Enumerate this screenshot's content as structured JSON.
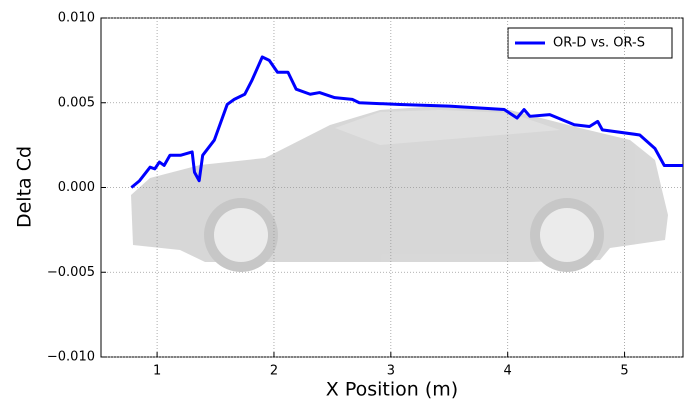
{
  "chart_data": {
    "type": "line",
    "xlabel": "X Position (m)",
    "ylabel": "Delta Cd",
    "xlim": [
      0.52,
      5.5
    ],
    "ylim": [
      -0.01,
      0.01
    ],
    "xticks": [
      1,
      2,
      3,
      4,
      5
    ],
    "yticks": [
      {
        "value": -0.01,
        "label": "−0.010"
      },
      {
        "value": -0.005,
        "label": "−0.005"
      },
      {
        "value": 0,
        "label": "0.000"
      },
      {
        "value": 0.005,
        "label": "0.005"
      },
      {
        "value": 0.01,
        "label": "0.010"
      }
    ],
    "grid": true,
    "legend": "upper right",
    "series": [
      {
        "name": "OR-D vs. OR-S",
        "color": "#0000ff",
        "x": [
          0.78,
          0.85,
          0.94,
          0.98,
          1.02,
          1.06,
          1.11,
          1.2,
          1.3,
          1.32,
          1.36,
          1.39,
          1.49,
          1.6,
          1.66,
          1.75,
          1.81,
          1.9,
          1.96,
          2.03,
          2.12,
          2.19,
          2.31,
          2.39,
          2.52,
          2.67,
          2.73,
          3.08,
          3.5,
          3.97,
          4.08,
          4.14,
          4.19,
          4.36,
          4.57,
          4.7,
          4.77,
          4.81,
          5.13,
          5.26,
          5.34,
          5.5
        ],
        "values": [
          0.0,
          0.0004,
          0.0012,
          0.0011,
          0.0015,
          0.0013,
          0.0019,
          0.0019,
          0.0021,
          0.0009,
          0.0004,
          0.0019,
          0.0028,
          0.0049,
          0.0052,
          0.0055,
          0.0063,
          0.0077,
          0.0075,
          0.0068,
          0.0068,
          0.0058,
          0.0055,
          0.0056,
          0.0053,
          0.0052,
          0.005,
          0.0049,
          0.0048,
          0.0046,
          0.0041,
          0.0046,
          0.0042,
          0.0043,
          0.0037,
          0.0036,
          0.0039,
          0.0034,
          0.0031,
          0.0023,
          0.0013,
          0.0013
        ]
      }
    ]
  }
}
